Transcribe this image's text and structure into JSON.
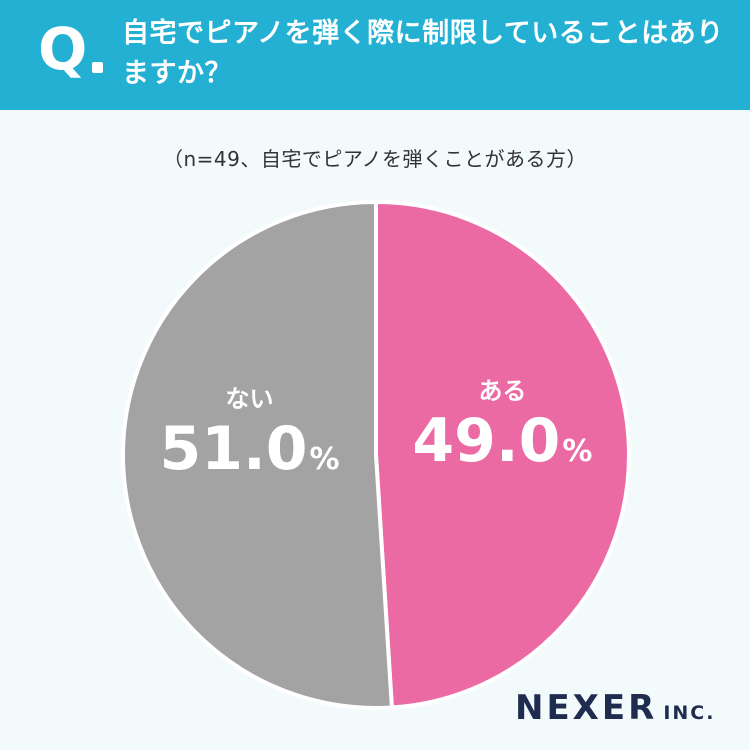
{
  "header": {
    "q_label": "Q",
    "question": "自宅でピアノを弾く際に制限していることはありますか？"
  },
  "subtitle": "（n=49、自宅でピアノを弾くことがある方）",
  "chart_data": {
    "type": "pie",
    "n": 49,
    "slices": [
      {
        "label": "ある",
        "value": 49.0,
        "display": "49.0",
        "unit": "%",
        "color": "#ec6aa4"
      },
      {
        "label": "ない",
        "value": 51.0,
        "display": "51.0",
        "unit": "%",
        "color": "#a3a3a3"
      }
    ]
  },
  "logo": {
    "main": "NEXER",
    "sub": "INC."
  },
  "colors": {
    "header": "#23b0d3",
    "background": "#f3fafc"
  }
}
